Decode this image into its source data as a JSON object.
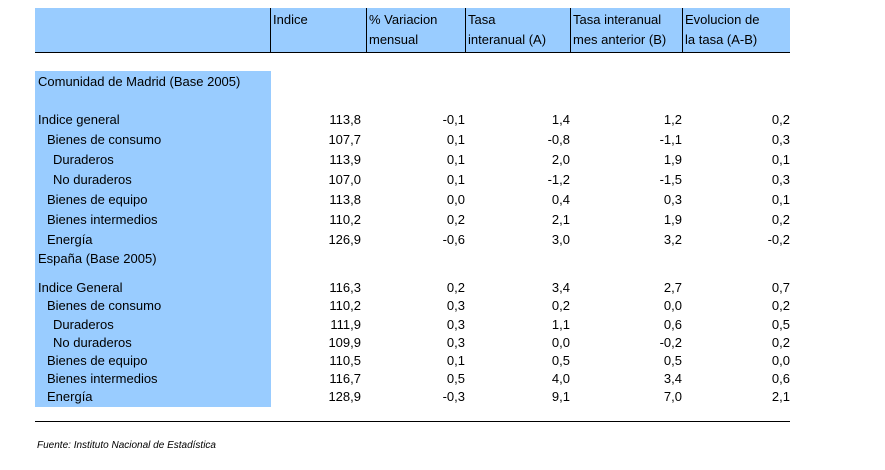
{
  "headers": [
    "Indice",
    "% Variacion mensual",
    "Tasa interanual (A)",
    "Tasa interanual mes anterior (B)",
    "Evolucion de la tasa (A-B)"
  ],
  "header_lines": [
    [
      "Indice"
    ],
    [
      "% Variacion",
      "mensual"
    ],
    [
      "Tasa",
      "interanual (A)"
    ],
    [
      "Tasa interanual",
      "mes anterior (B)"
    ],
    [
      "Evolucion de",
      "la tasa (A-B)"
    ]
  ],
  "sections": [
    {
      "title": "Comunidad de Madrid (Base 2005)",
      "rows": [
        {
          "label": "Indice general",
          "values": [
            "113,8",
            "-0,1",
            "1,4",
            "1,2",
            "0,2"
          ]
        },
        {
          "label": "Bienes de consumo",
          "values": [
            "107,7",
            "0,1",
            "-0,8",
            "-1,1",
            "0,3"
          ]
        },
        {
          "label": "Duraderos",
          "values": [
            "113,9",
            "0,1",
            "2,0",
            "1,9",
            "0,1"
          ]
        },
        {
          "label": "No duraderos",
          "values": [
            "107,0",
            "0,1",
            "-1,2",
            "-1,5",
            "0,3"
          ]
        },
        {
          "label": "Bienes de equipo",
          "values": [
            "113,8",
            "0,0",
            "0,4",
            "0,3",
            "0,1"
          ]
        },
        {
          "label": "Bienes intermedios",
          "values": [
            "110,2",
            "0,2",
            "2,1",
            "1,9",
            "0,2"
          ]
        },
        {
          "label": "Energía",
          "values": [
            "126,9",
            "-0,6",
            "3,0",
            "3,2",
            "-0,2"
          ]
        }
      ]
    },
    {
      "title": "España (Base 2005)",
      "rows": [
        {
          "label": "Indice General",
          "values": [
            "116,3",
            "0,2",
            "3,4",
            "2,7",
            "0,7"
          ]
        },
        {
          "label": "Bienes de consumo",
          "values": [
            "110,2",
            "0,3",
            "0,2",
            "0,0",
            "0,2"
          ]
        },
        {
          "label": "Duraderos",
          "values": [
            "111,9",
            "0,3",
            "1,1",
            "0,6",
            "0,5"
          ]
        },
        {
          "label": "No duraderos",
          "values": [
            "109,9",
            "0,3",
            "0,0",
            "-0,2",
            "0,2"
          ]
        },
        {
          "label": "Bienes de equipo",
          "values": [
            "110,5",
            "0,1",
            "0,5",
            "0,5",
            "0,0"
          ]
        },
        {
          "label": "Bienes intermedios",
          "values": [
            "116,7",
            "0,5",
            "4,0",
            "3,4",
            "0,6"
          ]
        },
        {
          "label": "Energía",
          "values": [
            "128,9",
            "-0,3",
            "9,1",
            "7,0",
            "2,1"
          ]
        }
      ]
    }
  ],
  "source": "Fuente: Instituto Nacional de Estadística"
}
